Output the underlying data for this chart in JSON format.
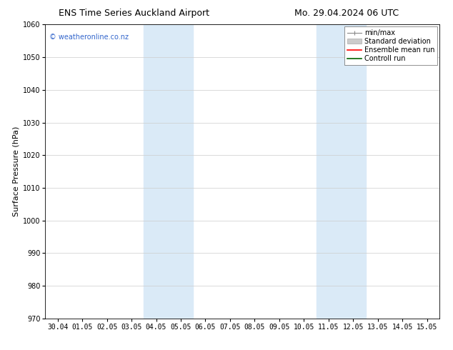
{
  "title_left": "ENS Time Series Auckland Airport",
  "title_right": "Mo. 29.04.2024 06 UTC",
  "ylabel": "Surface Pressure (hPa)",
  "ylim": [
    970,
    1060
  ],
  "yticks": [
    970,
    980,
    990,
    1000,
    1010,
    1020,
    1030,
    1040,
    1050,
    1060
  ],
  "xlim_dates": [
    "30.04",
    "01.05",
    "02.05",
    "03.05",
    "04.05",
    "05.05",
    "06.05",
    "07.05",
    "08.05",
    "09.05",
    "10.05",
    "11.05",
    "12.05",
    "13.05",
    "14.05",
    "15.05"
  ],
  "xtick_positions": [
    0,
    1,
    2,
    3,
    4,
    5,
    6,
    7,
    8,
    9,
    10,
    11,
    12,
    13,
    14,
    15
  ],
  "shaded_bands": [
    {
      "xmin": 4,
      "xmax": 6
    },
    {
      "xmin": 11,
      "xmax": 13
    }
  ],
  "shaded_color": "#daeaf7",
  "watermark": "© weatheronline.co.nz",
  "watermark_color": "#3366cc",
  "bg_color": "#ffffff",
  "grid_color": "#cccccc",
  "title_fontsize": 9,
  "axis_label_fontsize": 8,
  "tick_fontsize": 7,
  "watermark_fontsize": 7,
  "legend_fontsize": 7
}
